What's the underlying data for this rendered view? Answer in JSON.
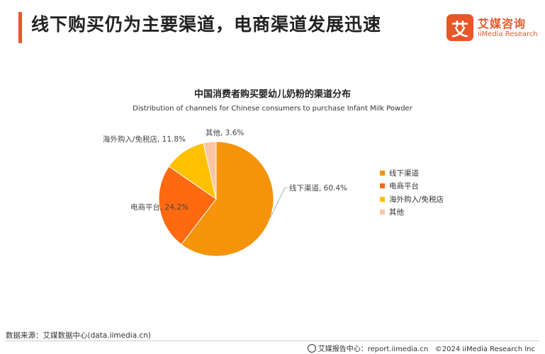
{
  "header": {
    "title": "线下购买仍为主要渠道，电商渠道发展迅速",
    "logo_mark": "艾",
    "logo_cn": "艾媒咨询",
    "logo_en": "iiMedia Research"
  },
  "chart_data": {
    "type": "pie",
    "title": "中国消费者购买婴幼儿奶粉的渠道分布",
    "subtitle": "Distribution of channels for Chinese consumers to purchase Infant Milk Powder",
    "slices": [
      {
        "name": "线下渠道",
        "value": 60.4,
        "label": "线下渠道, 60.4%",
        "color": "#f5930a"
      },
      {
        "name": "电商平台",
        "value": 24.2,
        "label": "电商平台, 24.2%",
        "color": "#ff6a10"
      },
      {
        "name": "海外购入/免税店",
        "value": 11.8,
        "label": "海外购入/免税店, 11.8%",
        "color": "#ffc000"
      },
      {
        "name": "其他",
        "value": 3.6,
        "label": "其他, 3.6%",
        "color": "#f9c6a3"
      }
    ],
    "legend_position": "right"
  },
  "footer": {
    "source": "数据来源：艾媒数据中心(data.iimedia.cn)",
    "report_center": "艾媒报告中心：report.iimedia.cn",
    "copyright": "©2024  iiMedia Research  Inc"
  }
}
